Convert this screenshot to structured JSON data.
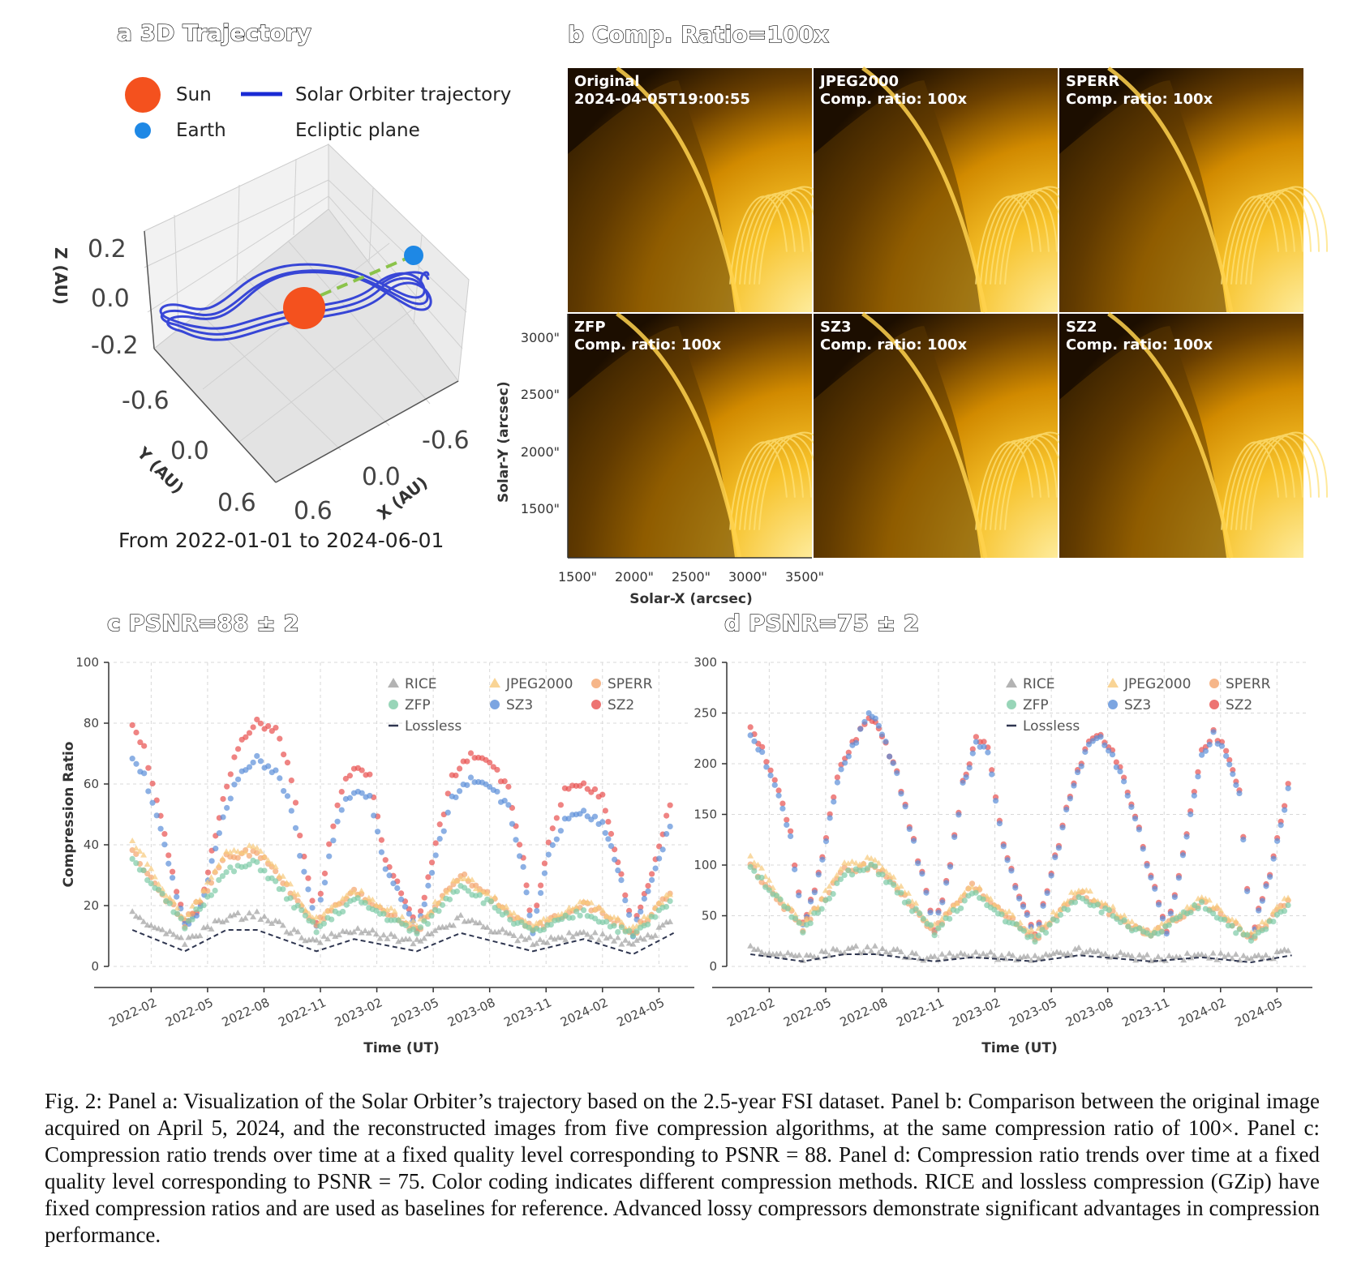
{
  "panel_a": {
    "title": "a 3D Trajectory",
    "legend": {
      "sun": "Sun",
      "earth": "Earth",
      "trajectory": "Solar Orbiter trajectory",
      "ecliptic": "Ecliptic plane"
    },
    "zlabel": "Z (AU)",
    "ylabel": "Y (AU)",
    "xlabel": "X (AU)",
    "z_ticks": [
      "0.2",
      "0.0",
      "-0.2"
    ],
    "y_ticks": [
      "-0.6",
      "0.0",
      "0.6"
    ],
    "x_ticks": [
      "0.6",
      "0.0",
      "-0.6"
    ],
    "subtitle": "From 2022-01-01 to 2024-06-01",
    "colors": {
      "sun": "#f4511e",
      "earth": "#1e88e5",
      "trajectory": "#1a2bd4",
      "ecliptic": "#8bc34a"
    }
  },
  "panel_b": {
    "title": "b Comp. Ratio=100x",
    "images": [
      {
        "line1": "Original",
        "line2": "2024-04-05T19:00:55"
      },
      {
        "line1": "JPEG2000",
        "line2": "Comp. ratio: 100x"
      },
      {
        "line1": "SPERR",
        "line2": "Comp. ratio: 100x"
      },
      {
        "line1": "ZFP",
        "line2": "Comp. ratio: 100x"
      },
      {
        "line1": "SZ3",
        "line2": "Comp. ratio: 100x"
      },
      {
        "line1": "SZ2",
        "line2": "Comp. ratio: 100x"
      }
    ],
    "y_ticks": [
      "3000\"",
      "2500\"",
      "2000\"",
      "1500\""
    ],
    "x_ticks": [
      "1500\"",
      "2000\"",
      "2500\"",
      "3000\"",
      "3500\""
    ],
    "ylabel": "Solar-Y (arcsec)",
    "xlabel": "Solar-X (arcsec)"
  },
  "chart_data": [
    {
      "panel": "c",
      "type": "scatter",
      "title": "c PSNR=88 ± 2",
      "xlabel": "Time (UT)",
      "ylabel": "Compression Ratio",
      "ylim": [
        0,
        100
      ],
      "y_ticks": [
        "0",
        "20",
        "40",
        "60",
        "80",
        "100"
      ],
      "x_ticks": [
        "2022-02",
        "2022-05",
        "2022-08",
        "2022-11",
        "2023-02",
        "2023-05",
        "2023-08",
        "2023-11",
        "2024-02",
        "2024-05"
      ],
      "grid": true,
      "legend_position": "top-right",
      "legend": [
        "RICE",
        "JPEG2000",
        "SPERR",
        "ZFP",
        "SZ3",
        "SZ2",
        "Lossless"
      ],
      "series": [
        {
          "name": "SZ2",
          "color": "#e8504f",
          "x": [
            "2022-01-01",
            "2022-01-20",
            "2022-02-10",
            "2022-03-05",
            "2022-03-25",
            "2022-04-20",
            "2022-05-20",
            "2022-06-20",
            "2022-07-20",
            "2022-08-20",
            "2022-09-15",
            "2022-10-05",
            "2022-10-25",
            "2022-11-15",
            "2022-12-05",
            "2022-12-25",
            "2023-01-20",
            "2023-02-15",
            "2023-03-10",
            "2023-04-05",
            "2023-05-05",
            "2023-06-01",
            "2023-07-01",
            "2023-08-01",
            "2023-09-01",
            "2023-09-25",
            "2023-10-10",
            "2023-11-05",
            "2023-12-01",
            "2024-01-01",
            "2024-02-01",
            "2024-02-15",
            "2024-03-01",
            "2024-03-20",
            "2024-04-20",
            "2024-05-25"
          ],
          "y": [
            80,
            72,
            55,
            30,
            14,
            20,
            50,
            72,
            80,
            78,
            62,
            35,
            14,
            40,
            58,
            66,
            62,
            35,
            25,
            12,
            40,
            62,
            70,
            68,
            58,
            35,
            12,
            40,
            58,
            59,
            56,
            44,
            30,
            12,
            30,
            58
          ]
        },
        {
          "name": "SZ3",
          "color": "#5b8fd9",
          "x": [
            "2022-01-01",
            "2022-01-20",
            "2022-02-10",
            "2022-03-05",
            "2022-03-25",
            "2022-04-20",
            "2022-05-20",
            "2022-06-20",
            "2022-07-20",
            "2022-08-20",
            "2022-09-15",
            "2022-10-05",
            "2022-10-25",
            "2022-11-15",
            "2022-12-05",
            "2022-12-25",
            "2023-01-20",
            "2023-02-15",
            "2023-03-10",
            "2023-04-05",
            "2023-05-05",
            "2023-06-01",
            "2023-07-01",
            "2023-08-01",
            "2023-09-01",
            "2023-09-25",
            "2023-10-10",
            "2023-11-05",
            "2023-12-01",
            "2024-01-01",
            "2024-02-01",
            "2024-02-15",
            "2024-03-01",
            "2024-03-20",
            "2024-04-20",
            "2024-05-25"
          ],
          "y": [
            69,
            63,
            50,
            28,
            13,
            19,
            45,
            62,
            68,
            64,
            52,
            30,
            13,
            36,
            52,
            58,
            55,
            32,
            23,
            11,
            36,
            55,
            62,
            60,
            52,
            32,
            11,
            36,
            48,
            50,
            47,
            40,
            28,
            11,
            28,
            50
          ]
        },
        {
          "name": "SPERR",
          "color": "#f4a46c",
          "x": [
            "2022-01-01",
            "2022-03-25",
            "2022-06-01",
            "2022-07-20",
            "2022-10-25",
            "2022-12-25",
            "2023-04-05",
            "2023-06-15",
            "2023-10-10",
            "2024-01-01",
            "2024-03-20",
            "2024-05-25"
          ],
          "y": [
            38,
            14,
            36,
            38,
            14,
            24,
            12,
            30,
            12,
            21,
            11,
            25
          ]
        },
        {
          "name": "JPEG2000",
          "color": "#f7c97a",
          "x": [
            "2022-01-01",
            "2022-03-25",
            "2022-06-01",
            "2022-07-20",
            "2022-10-25",
            "2022-12-25",
            "2023-04-05",
            "2023-06-15",
            "2023-10-10",
            "2024-01-01",
            "2024-03-20",
            "2024-05-25"
          ],
          "y": [
            41,
            15,
            37,
            40,
            15,
            25,
            13,
            30,
            13,
            22,
            12,
            25
          ]
        },
        {
          "name": "ZFP",
          "color": "#7ecba6",
          "x": [
            "2022-01-01",
            "2022-03-25",
            "2022-06-01",
            "2022-07-20",
            "2022-10-25",
            "2022-12-25",
            "2023-04-05",
            "2023-06-15",
            "2023-10-10",
            "2024-01-01",
            "2024-03-20",
            "2024-05-25"
          ],
          "y": [
            36,
            13,
            31,
            34,
            12,
            22,
            11,
            27,
            11,
            18,
            10,
            22
          ]
        },
        {
          "name": "RICE",
          "color": "#a0a0a0",
          "x": [
            "2022-01-01",
            "2022-03-25",
            "2022-06-01",
            "2022-07-20",
            "2022-10-25",
            "2022-12-25",
            "2023-04-05",
            "2023-06-15",
            "2023-10-10",
            "2024-01-01",
            "2024-03-20",
            "2024-05-25"
          ],
          "y": [
            17,
            8,
            16,
            17,
            8,
            12,
            8,
            16,
            8,
            11,
            7,
            15
          ]
        },
        {
          "name": "Lossless",
          "color": "#2f3650",
          "x": [
            "2022-01-01",
            "2022-03-25",
            "2022-06-01",
            "2022-07-20",
            "2022-10-25",
            "2022-12-25",
            "2023-04-05",
            "2023-06-15",
            "2023-10-10",
            "2024-01-01",
            "2024-03-20",
            "2024-05-25"
          ],
          "y": [
            12,
            5,
            12,
            12,
            5,
            9,
            5,
            11,
            5,
            9,
            4,
            11
          ]
        }
      ]
    },
    {
      "panel": "d",
      "type": "scatter",
      "title": "d PSNR=75 ± 2",
      "xlabel": "Time (UT)",
      "ylabel": "",
      "ylim": [
        0,
        300
      ],
      "y_ticks": [
        "0",
        "50",
        "100",
        "150",
        "200",
        "250",
        "300"
      ],
      "x_ticks": [
        "2022-02",
        "2022-05",
        "2022-08",
        "2022-11",
        "2023-02",
        "2023-05",
        "2023-08",
        "2023-11",
        "2024-02",
        "2024-05"
      ],
      "grid": true,
      "legend_position": "top-right",
      "legend": [
        "RICE",
        "JPEG2000",
        "SPERR",
        "ZFP",
        "SZ3",
        "SZ2",
        "Lossless"
      ],
      "series": [
        {
          "name": "SZ2",
          "color": "#e8504f",
          "x": [
            "2022-01-01",
            "2022-01-20",
            "2022-02-10",
            "2022-03-05",
            "2022-03-25",
            "2022-04-20",
            "2022-05-20",
            "2022-06-20",
            "2022-07-10",
            "2022-08-01",
            "2022-08-25",
            "2022-09-15",
            "2022-10-05",
            "2022-10-25",
            "2022-11-20",
            "2022-12-10",
            "2023-01-01",
            "2023-01-20",
            "2023-02-15",
            "2023-03-10",
            "2023-04-05",
            "2023-05-01",
            "2023-06-01",
            "2023-07-01",
            "2023-07-20",
            "2023-08-15",
            "2023-09-15",
            "2023-10-10",
            "2023-11-05",
            "2023-12-01",
            "2024-01-01",
            "2024-01-20",
            "2024-02-10",
            "2024-03-01",
            "2024-03-20",
            "2024-04-20",
            "2024-05-25"
          ],
          "y": [
            238,
            215,
            185,
            130,
            40,
            90,
            190,
            225,
            245,
            230,
            190,
            140,
            90,
            35,
            100,
            180,
            225,
            215,
            120,
            70,
            30,
            90,
            170,
            225,
            230,
            205,
            150,
            90,
            32,
            110,
            210,
            230,
            215,
            175,
            30,
            90,
            195
          ]
        },
        {
          "name": "SZ3",
          "color": "#5b8fd9",
          "x": [
            "2022-01-01",
            "2022-01-20",
            "2022-02-10",
            "2022-03-05",
            "2022-03-25",
            "2022-04-20",
            "2022-05-20",
            "2022-06-20",
            "2022-07-10",
            "2022-08-01",
            "2022-08-25",
            "2022-09-15",
            "2022-10-05",
            "2022-10-25",
            "2022-11-20",
            "2022-12-10",
            "2023-01-01",
            "2023-01-20",
            "2023-02-15",
            "2023-03-10",
            "2023-04-05",
            "2023-05-01",
            "2023-06-01",
            "2023-07-01",
            "2023-07-20",
            "2023-08-15",
            "2023-09-15",
            "2023-10-10",
            "2023-11-05",
            "2023-12-01",
            "2024-01-01",
            "2024-01-20",
            "2024-02-10",
            "2024-03-01",
            "2024-03-20",
            "2024-04-20",
            "2024-05-25"
          ],
          "y": [
            230,
            210,
            180,
            125,
            38,
            88,
            185,
            222,
            250,
            232,
            188,
            138,
            88,
            33,
            98,
            178,
            220,
            210,
            118,
            68,
            28,
            88,
            168,
            222,
            228,
            200,
            148,
            88,
            30,
            108,
            205,
            228,
            210,
            172,
            28,
            88,
            190
          ]
        },
        {
          "name": "SPERR",
          "color": "#f4a46c",
          "x": [
            "2022-01-01",
            "2022-03-25",
            "2022-06-01",
            "2022-07-20",
            "2022-10-25",
            "2022-12-25",
            "2023-04-05",
            "2023-06-15",
            "2023-10-10",
            "2024-01-01",
            "2024-03-20",
            "2024-05-25"
          ],
          "y": [
            100,
            38,
            95,
            100,
            35,
            78,
            28,
            72,
            30,
            65,
            28,
            68
          ]
        },
        {
          "name": "JPEG2000",
          "color": "#f7c97a",
          "x": [
            "2022-01-01",
            "2022-03-25",
            "2022-06-01",
            "2022-07-20",
            "2022-10-25",
            "2022-12-25",
            "2023-04-05",
            "2023-06-15",
            "2023-10-10",
            "2024-01-01",
            "2024-03-20",
            "2024-05-25"
          ],
          "y": [
            108,
            40,
            100,
            108,
            38,
            80,
            30,
            78,
            32,
            70,
            30,
            72
          ]
        },
        {
          "name": "ZFP",
          "color": "#7ecba6",
          "x": [
            "2022-01-01",
            "2022-03-25",
            "2022-06-01",
            "2022-07-20",
            "2022-10-25",
            "2022-12-25",
            "2023-04-05",
            "2023-06-15",
            "2023-10-10",
            "2024-01-01",
            "2024-03-20",
            "2024-05-25"
          ],
          "y": [
            100,
            35,
            90,
            98,
            33,
            72,
            25,
            70,
            28,
            62,
            25,
            62
          ]
        },
        {
          "name": "RICE",
          "color": "#a0a0a0",
          "x": [
            "2022-01-01",
            "2022-03-25",
            "2022-06-01",
            "2022-07-20",
            "2022-10-25",
            "2022-12-25",
            "2023-04-05",
            "2023-06-15",
            "2023-10-10",
            "2024-01-01",
            "2024-03-20",
            "2024-05-25"
          ],
          "y": [
            17,
            8,
            16,
            17,
            8,
            12,
            8,
            16,
            8,
            11,
            7,
            15
          ]
        },
        {
          "name": "Lossless",
          "color": "#2f3650",
          "x": [
            "2022-01-01",
            "2022-03-25",
            "2022-06-01",
            "2022-07-20",
            "2022-10-25",
            "2022-12-25",
            "2023-04-05",
            "2023-06-15",
            "2023-10-10",
            "2024-01-01",
            "2024-03-20",
            "2024-05-25"
          ],
          "y": [
            12,
            5,
            12,
            12,
            5,
            9,
            5,
            11,
            5,
            9,
            4,
            11
          ]
        }
      ]
    }
  ],
  "caption": "Fig. 2: Panel a: Visualization of the Solar Orbiter’s trajectory based on the 2.5-year FSI dataset. Panel b: Comparison between the original image acquired on April 5, 2024, and the reconstructed images from five compression algorithms, at the same compression ratio of 100×. Panel c: Compression ratio trends over time at a fixed quality level corresponding to PSNR = 88. Panel d: Compression ratio trends over time at a fixed quality level corresponding to PSNR = 75. Color coding indicates different compression methods. RICE and lossless compression (GZip) have fixed compression ratios and are used as baselines for reference. Advanced lossy compressors demonstrate significant advantages in compression performance."
}
